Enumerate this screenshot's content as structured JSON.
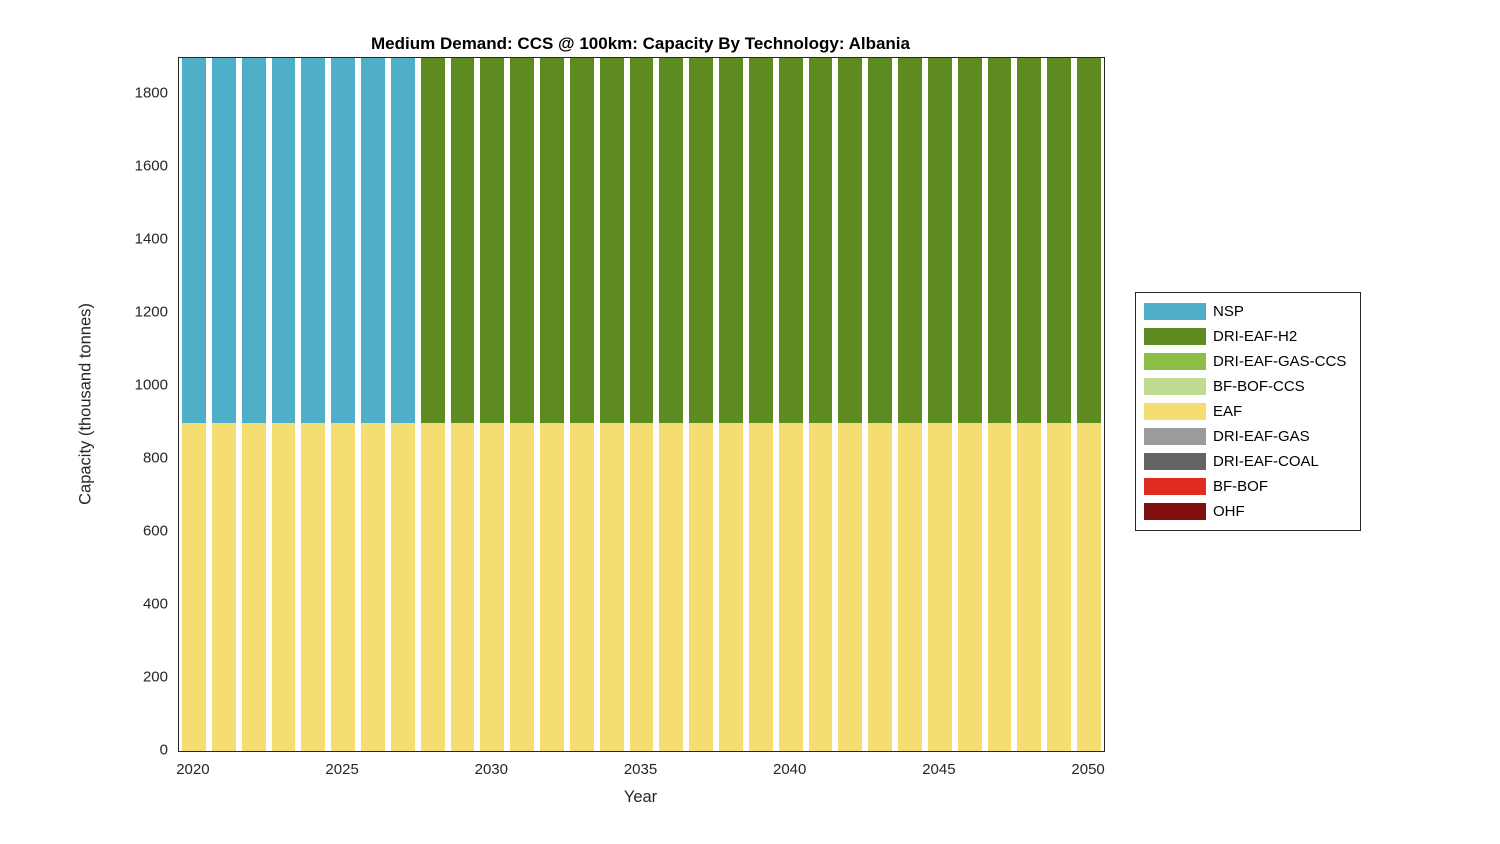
{
  "title": "Medium Demand: CCS @ 100km: Capacity By Technology: Albania",
  "xlabel": "Year",
  "ylabel": "Capacity (thousand tonnes)",
  "axes": {
    "y_ticks": [
      0,
      200,
      400,
      600,
      800,
      1000,
      1200,
      1400,
      1600,
      1800
    ],
    "x_ticks": [
      2020,
      2025,
      2030,
      2035,
      2040,
      2045,
      2050
    ],
    "ylim": [
      0,
      1900
    ]
  },
  "legend": [
    {
      "label": "NSP",
      "color": "#4FAEC8"
    },
    {
      "label": "DRI-EAF-H2",
      "color": "#5E8B1F"
    },
    {
      "label": "DRI-EAF-GAS-CCS",
      "color": "#8CBE45"
    },
    {
      "label": "BF-BOF-CCS",
      "color": "#C0DC93"
    },
    {
      "label": "EAF",
      "color": "#F4DE71"
    },
    {
      "label": "DRI-EAF-GAS",
      "color": "#9B9B9B"
    },
    {
      "label": "DRI-EAF-COAL",
      "color": "#646464"
    },
    {
      "label": "BF-BOF",
      "color": "#DF2B20"
    },
    {
      "label": "OHF",
      "color": "#800F0E"
    }
  ],
  "chart_data": {
    "type": "bar",
    "stacked": true,
    "title": "Medium Demand: CCS @ 100km: Capacity By Technology: Albania",
    "xlabel": "Year",
    "ylabel": "Capacity (thousand tonnes)",
    "ylim": [
      0,
      1900
    ],
    "grid": false,
    "legend_position": "right-outside",
    "x": [
      2020,
      2021,
      2022,
      2023,
      2024,
      2025,
      2026,
      2027,
      2028,
      2029,
      2030,
      2031,
      2032,
      2033,
      2034,
      2035,
      2036,
      2037,
      2038,
      2039,
      2040,
      2041,
      2042,
      2043,
      2044,
      2045,
      2046,
      2047,
      2048,
      2049,
      2050
    ],
    "series": [
      {
        "name": "EAF",
        "color": "#F4DE71",
        "values": [
          900,
          900,
          900,
          900,
          900,
          900,
          900,
          900,
          900,
          900,
          900,
          900,
          900,
          900,
          900,
          900,
          900,
          900,
          900,
          900,
          900,
          900,
          900,
          900,
          900,
          900,
          900,
          900,
          900,
          900,
          900
        ]
      },
      {
        "name": "NSP",
        "color": "#4FAEC8",
        "values": [
          1000,
          1000,
          1000,
          1000,
          1000,
          1000,
          1000,
          1000,
          0,
          0,
          0,
          0,
          0,
          0,
          0,
          0,
          0,
          0,
          0,
          0,
          0,
          0,
          0,
          0,
          0,
          0,
          0,
          0,
          0,
          0,
          0
        ]
      },
      {
        "name": "DRI-EAF-H2",
        "color": "#5E8B1F",
        "values": [
          0,
          0,
          0,
          0,
          0,
          0,
          0,
          0,
          1000,
          1000,
          1000,
          1000,
          1000,
          1000,
          1000,
          1000,
          1000,
          1000,
          1000,
          1000,
          1000,
          1000,
          1000,
          1000,
          1000,
          1000,
          1000,
          1000,
          1000,
          1000,
          1000
        ]
      }
    ],
    "note_series_not_present_in_bars": [
      "DRI-EAF-GAS-CCS",
      "BF-BOF-CCS",
      "DRI-EAF-GAS",
      "DRI-EAF-COAL",
      "BF-BOF",
      "OHF"
    ]
  }
}
